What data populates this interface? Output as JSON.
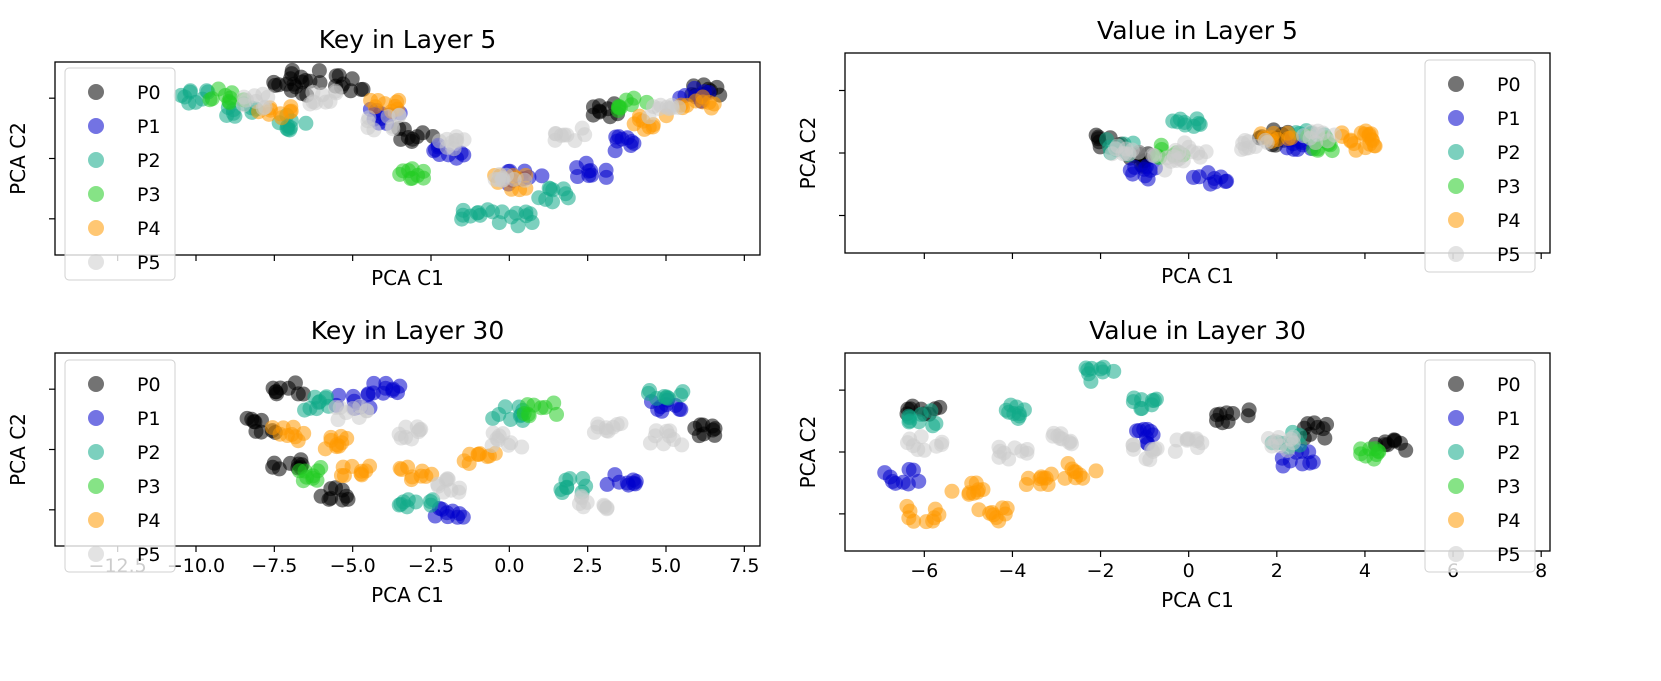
{
  "chart_data": [
    {
      "type": "scatter",
      "title": "Key in Layer 5",
      "xlabel": "PCA C1",
      "ylabel": "PCA C2",
      "xlim": [
        -14.5,
        8.0
      ],
      "ylim": [
        -3.2,
        3.2
      ],
      "xticks": [
        -12.5,
        -10.0,
        -7.5,
        -5.0,
        -2.5,
        0.0,
        2.5,
        5.0,
        7.5
      ],
      "xtick_labels": [],
      "yticks": [
        -2,
        0,
        2
      ],
      "show_x_tick_labels": false,
      "grid": false,
      "legend": "upper left",
      "series": [
        {
          "name": "P0",
          "color": "#000000",
          "points": [
            [
              -6.5,
              2.7
            ],
            [
              -3.0,
              0.8
            ],
            [
              3.0,
              1.6
            ],
            [
              6.2,
              2.2
            ],
            [
              -7.0,
              2.3
            ],
            [
              -5.0,
              2.5
            ]
          ]
        },
        {
          "name": "P1",
          "color": "#0000cc",
          "points": [
            [
              -4.0,
              1.4
            ],
            [
              0.5,
              -0.6
            ],
            [
              3.5,
              0.5
            ],
            [
              6.0,
              2.1
            ],
            [
              -2.0,
              0.2
            ],
            [
              2.7,
              -0.4
            ]
          ]
        },
        {
          "name": "P2",
          "color": "#11aa88",
          "points": [
            [
              -10.0,
              2.0
            ],
            [
              -8.5,
              1.6
            ],
            [
              -1.0,
              -1.8
            ],
            [
              1.5,
              -1.2
            ],
            [
              -7.0,
              1.2
            ],
            [
              0.2,
              -2.0
            ]
          ]
        },
        {
          "name": "P3",
          "color": "#22cc22",
          "points": [
            [
              -9.0,
              2.1
            ],
            [
              4.0,
              1.8
            ],
            [
              -3.0,
              -0.5
            ]
          ]
        },
        {
          "name": "P4",
          "color": "#ff9900",
          "points": [
            [
              -7.5,
              1.6
            ],
            [
              -4.0,
              1.8
            ],
            [
              4.5,
              1.2
            ],
            [
              0.0,
              -0.8
            ],
            [
              6.0,
              1.8
            ]
          ]
        },
        {
          "name": "P5",
          "color": "#cccccc",
          "points": [
            [
              -6.0,
              2.0
            ],
            [
              -2.0,
              0.5
            ],
            [
              0.0,
              -0.5
            ],
            [
              2.0,
              0.8
            ],
            [
              5.0,
              1.6
            ],
            [
              -4.0,
              1.2
            ],
            [
              -8.0,
              1.9
            ]
          ]
        }
      ]
    },
    {
      "type": "scatter",
      "title": "Value in Layer 5",
      "xlabel": "PCA C1",
      "ylabel": "PCA C2",
      "xlim": [
        -7.8,
        8.2
      ],
      "ylim": [
        -3.2,
        3.2
      ],
      "xticks": [
        -6,
        -4,
        -2,
        0,
        2,
        4,
        6,
        8
      ],
      "xtick_labels": [],
      "yticks": [
        -2,
        0,
        2
      ],
      "show_x_tick_labels": false,
      "grid": false,
      "legend": "upper right",
      "series": [
        {
          "name": "P0",
          "color": "#000000",
          "points": [
            [
              -1.8,
              0.4
            ],
            [
              2.0,
              0.5
            ],
            [
              -1.0,
              -0.2
            ]
          ]
        },
        {
          "name": "P1",
          "color": "#0000cc",
          "points": [
            [
              -1.0,
              -0.6
            ],
            [
              0.5,
              -0.8
            ],
            [
              2.5,
              0.2
            ]
          ]
        },
        {
          "name": "P2",
          "color": "#11aa88",
          "points": [
            [
              -1.5,
              0.2
            ],
            [
              0.0,
              0.9
            ],
            [
              2.8,
              0.6
            ]
          ]
        },
        {
          "name": "P3",
          "color": "#22cc22",
          "points": [
            [
              -0.5,
              0.0
            ],
            [
              3.0,
              0.3
            ]
          ]
        },
        {
          "name": "P4",
          "color": "#ff9900",
          "points": [
            [
              3.8,
              0.5
            ],
            [
              2.0,
              0.6
            ],
            [
              4.0,
              0.3
            ]
          ]
        },
        {
          "name": "P5",
          "color": "#cccccc",
          "points": [
            [
              -1.5,
              0.2
            ],
            [
              0.0,
              0.1
            ],
            [
              1.5,
              0.3
            ],
            [
              3.0,
              0.5
            ],
            [
              -0.5,
              -0.3
            ]
          ]
        }
      ]
    },
    {
      "type": "scatter",
      "title": "Key in Layer 30",
      "xlabel": "PCA C1",
      "ylabel": "PCA C2",
      "xlim": [
        -14.5,
        8.0
      ],
      "ylim": [
        -3.2,
        3.2
      ],
      "xticks": [
        -12.5,
        -10.0,
        -7.5,
        -5.0,
        -2.5,
        0.0,
        2.5,
        5.0,
        7.5
      ],
      "xtick_labels": [
        "−12.5",
        "−10.0",
        "−7.5",
        "−5.0",
        "−2.5",
        "0.0",
        "2.5",
        "5.0",
        "7.5"
      ],
      "yticks": [
        -2,
        0,
        2
      ],
      "show_x_tick_labels": true,
      "grid": false,
      "legend": "upper left",
      "series": [
        {
          "name": "P0",
          "color": "#000000",
          "points": [
            [
              -8.0,
              0.8
            ],
            [
              -7.0,
              2.0
            ],
            [
              6.2,
              0.6
            ],
            [
              -5.5,
              -1.5
            ],
            [
              -7.0,
              -0.4
            ]
          ]
        },
        {
          "name": "P1",
          "color": "#0000cc",
          "points": [
            [
              -4.0,
              2.0
            ],
            [
              -2.0,
              -2.0
            ],
            [
              3.5,
              -1.0
            ],
            [
              5.0,
              1.5
            ],
            [
              -5.0,
              1.6
            ]
          ]
        },
        {
          "name": "P2",
          "color": "#11aa88",
          "points": [
            [
              5.0,
              1.7
            ],
            [
              0.0,
              1.2
            ],
            [
              -6.0,
              1.5
            ],
            [
              2.0,
              -1.2
            ],
            [
              -3.0,
              -1.8
            ]
          ]
        },
        {
          "name": "P3",
          "color": "#22cc22",
          "points": [
            [
              -6.2,
              -0.8
            ],
            [
              1.0,
              1.3
            ]
          ]
        },
        {
          "name": "P4",
          "color": "#ff9900",
          "points": [
            [
              -7.0,
              0.5
            ],
            [
              -5.0,
              -0.8
            ],
            [
              -3.0,
              -0.8
            ],
            [
              -1.0,
              -0.3
            ],
            [
              -5.5,
              0.2
            ]
          ]
        },
        {
          "name": "P5",
          "color": "#cccccc",
          "points": [
            [
              -5.0,
              1.2
            ],
            [
              -3.0,
              0.5
            ],
            [
              0.0,
              0.3
            ],
            [
              3.0,
              0.7
            ],
            [
              5.0,
              0.4
            ],
            [
              2.8,
              -1.8
            ],
            [
              -2.0,
              -1.2
            ]
          ]
        }
      ]
    },
    {
      "type": "scatter",
      "title": "Value in Layer 30",
      "xlabel": "PCA C1",
      "ylabel": "PCA C2",
      "xlim": [
        -7.8,
        8.2
      ],
      "ylim": [
        -3.2,
        3.2
      ],
      "xticks": [
        -6,
        -4,
        -2,
        0,
        2,
        4,
        6,
        8
      ],
      "xtick_labels": [
        "−6",
        "−4",
        "−2",
        "0",
        "2",
        "4",
        "6",
        "8"
      ],
      "yticks": [
        -2,
        0,
        2
      ],
      "show_x_tick_labels": true,
      "grid": false,
      "legend": "upper right",
      "series": [
        {
          "name": "P0",
          "color": "#000000",
          "points": [
            [
              4.6,
              0.3
            ],
            [
              -6.0,
              1.3
            ],
            [
              3.0,
              0.7
            ],
            [
              1.0,
              1.2
            ]
          ]
        },
        {
          "name": "P1",
          "color": "#0000cc",
          "points": [
            [
              -6.5,
              -0.8
            ],
            [
              2.5,
              -0.2
            ],
            [
              -1.0,
              0.5
            ]
          ]
        },
        {
          "name": "P2",
          "color": "#11aa88",
          "points": [
            [
              -2.0,
              2.5
            ],
            [
              -4.0,
              1.3
            ],
            [
              -6.0,
              1.1
            ],
            [
              -1.0,
              1.5
            ],
            [
              2.2,
              0.4
            ]
          ]
        },
        {
          "name": "P3",
          "color": "#22cc22",
          "points": [
            [
              4.0,
              0.0
            ]
          ]
        },
        {
          "name": "P4",
          "color": "#ff9900",
          "points": [
            [
              -6.0,
              -2.0
            ],
            [
              -5.0,
              -1.2
            ],
            [
              -3.5,
              -0.8
            ],
            [
              -4.5,
              -2.0
            ],
            [
              -2.5,
              -0.6
            ]
          ]
        },
        {
          "name": "P5",
          "color": "#cccccc",
          "points": [
            [
              -6.0,
              0.3
            ],
            [
              -3.0,
              0.5
            ],
            [
              0.0,
              0.2
            ],
            [
              2.0,
              0.3
            ],
            [
              -4.0,
              0.0
            ],
            [
              -1.0,
              0.0
            ]
          ]
        }
      ]
    }
  ]
}
